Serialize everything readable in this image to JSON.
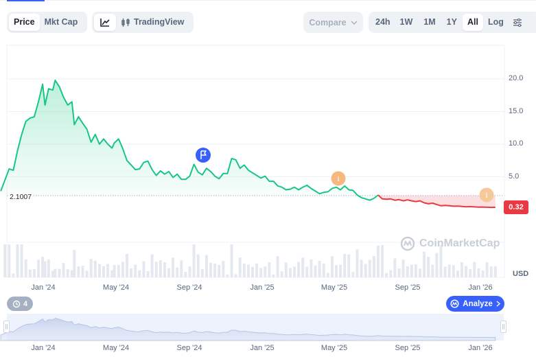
{
  "tabs": {
    "price": "Price",
    "mkt_cap": "Mkt Cap",
    "line_icon": "line-chart-icon",
    "candle_icon": "candlestick-icon",
    "tradingview": "TradingView"
  },
  "compare": {
    "label": "Compare",
    "icon": "chevron-down-icon"
  },
  "ranges": {
    "items": [
      "24h",
      "1W",
      "1M",
      "1Y",
      "All"
    ],
    "selected": "All",
    "log": "Log",
    "settings_icon": "settings-sliders-icon"
  },
  "chart": {
    "reference_label": "2.1007",
    "current_price": "0.32",
    "currency": "USD",
    "watermark": "CoinMarketCap",
    "events_count": "4",
    "analyze_label": "Analyze",
    "colors": {
      "up": "#16c784",
      "down": "#ea3943",
      "accent": "#3861fb",
      "event_marker": "#f6b87e"
    }
  },
  "navigator": {
    "x_labels": [
      "Jan '24",
      "May '24",
      "Sep '24",
      "Jan '25",
      "May '25",
      "Sep '25",
      "Jan '26"
    ]
  },
  "chart_data": {
    "type": "area",
    "y_tick_labels": [
      "5.0",
      "10.0",
      "15.0",
      "20.0"
    ],
    "x_labels": [
      "Jan '24",
      "May '24",
      "Sep '24",
      "Jan '25",
      "May '25",
      "Sep '25",
      "Jan '26"
    ],
    "ylim": [
      -2.3,
      22
    ],
    "baseline": 2.1007,
    "grid": true,
    "legend": "none",
    "series": [
      {
        "x": [
          "2023-11-05",
          "2023-11-12",
          "2023-11-19",
          "2023-11-26",
          "2023-12-03",
          "2023-12-10",
          "2023-12-17",
          "2023-12-24",
          "2023-12-31",
          "2024-01-07",
          "2024-01-14",
          "2024-01-18",
          "2024-01-24",
          "2024-01-31",
          "2024-02-04",
          "2024-02-11",
          "2024-02-18",
          "2024-02-25",
          "2024-03-03",
          "2024-03-07",
          "2024-03-14",
          "2024-03-21",
          "2024-03-28",
          "2024-04-04",
          "2024-04-11",
          "2024-04-18",
          "2024-04-25",
          "2024-05-02",
          "2024-05-09",
          "2024-05-13",
          "2024-05-20",
          "2024-05-27",
          "2024-06-03",
          "2024-06-10",
          "2024-06-17",
          "2024-06-24",
          "2024-07-01",
          "2024-07-08",
          "2024-07-15",
          "2024-07-22",
          "2024-07-29",
          "2024-08-05",
          "2024-08-12",
          "2024-08-19",
          "2024-08-26",
          "2024-09-02",
          "2024-09-09",
          "2024-09-16",
          "2024-09-23",
          "2024-09-30",
          "2024-10-07",
          "2024-10-14",
          "2024-10-21",
          "2024-10-28",
          "2024-11-04",
          "2024-11-11",
          "2024-11-18",
          "2024-11-25",
          "2024-12-02",
          "2024-12-09",
          "2024-12-16",
          "2024-12-23",
          "2024-12-30",
          "2025-01-06",
          "2025-01-13",
          "2025-01-20",
          "2025-01-27",
          "2025-02-03",
          "2025-02-10",
          "2025-02-17",
          "2025-02-24",
          "2025-03-03",
          "2025-03-10",
          "2025-03-17",
          "2025-03-24",
          "2025-03-31",
          "2025-04-07",
          "2025-04-14",
          "2025-04-21",
          "2025-04-28",
          "2025-05-05",
          "2025-05-12",
          "2025-05-19",
          "2025-05-26",
          "2025-06-02",
          "2025-06-09",
          "2025-06-16",
          "2025-06-23",
          "2025-06-30",
          "2025-07-07",
          "2025-07-14",
          "2025-07-21",
          "2025-07-28",
          "2025-08-04",
          "2025-08-11",
          "2025-08-18",
          "2025-08-25",
          "2025-09-01",
          "2025-09-08",
          "2025-09-15",
          "2025-09-22",
          "2025-09-29",
          "2025-10-06",
          "2025-10-13",
          "2025-10-20",
          "2025-10-27",
          "2025-11-03",
          "2025-11-10",
          "2025-11-17",
          "2025-11-24",
          "2025-12-01",
          "2025-12-08",
          "2025-12-15",
          "2025-12-22",
          "2025-12-29",
          "2026-01-05",
          "2026-01-12",
          "2026-01-19",
          "2026-01-26",
          "2026-02-02",
          "2026-02-09"
        ],
        "y": [
          2.8,
          4.5,
          6.2,
          6.0,
          9.0,
          11.5,
          13.5,
          14.0,
          14.2,
          16.5,
          19.2,
          16.0,
          18.5,
          18.3,
          19.8,
          18.8,
          17.2,
          16.0,
          16.5,
          13.0,
          14.2,
          13.2,
          12.3,
          10.3,
          11.5,
          10.0,
          10.8,
          10.0,
          9.4,
          10.2,
          10.8,
          9.3,
          7.5,
          6.8,
          6.1,
          6.2,
          7.2,
          7.4,
          6.1,
          5.2,
          5.9,
          5.4,
          5.8,
          4.9,
          5.4,
          4.6,
          4.6,
          5.1,
          6.9,
          5.7,
          5.3,
          6.3,
          5.8,
          5.1,
          4.7,
          5.5,
          5.5,
          7.8,
          7.6,
          6.3,
          6.8,
          6.0,
          5.6,
          5.2,
          4.8,
          5.1,
          4.3,
          4.3,
          3.6,
          3.4,
          3.0,
          3.1,
          3.4,
          3.0,
          3.4,
          3.7,
          3.2,
          2.8,
          2.4,
          2.6,
          2.7,
          3.2,
          3.4,
          3.0,
          3.6,
          3.0,
          2.9,
          2.2,
          1.8,
          1.6,
          1.4,
          1.7,
          2.2,
          1.6,
          1.55,
          1.6,
          1.4,
          1.5,
          1.3,
          1.45,
          1.3,
          1.2,
          1.3,
          1.0,
          0.85,
          0.95,
          0.75,
          0.55,
          0.6,
          0.55,
          0.48,
          0.5,
          0.45,
          0.4,
          0.42,
          0.38,
          0.35,
          0.36,
          0.33,
          0.3,
          0.32
        ]
      }
    ]
  }
}
